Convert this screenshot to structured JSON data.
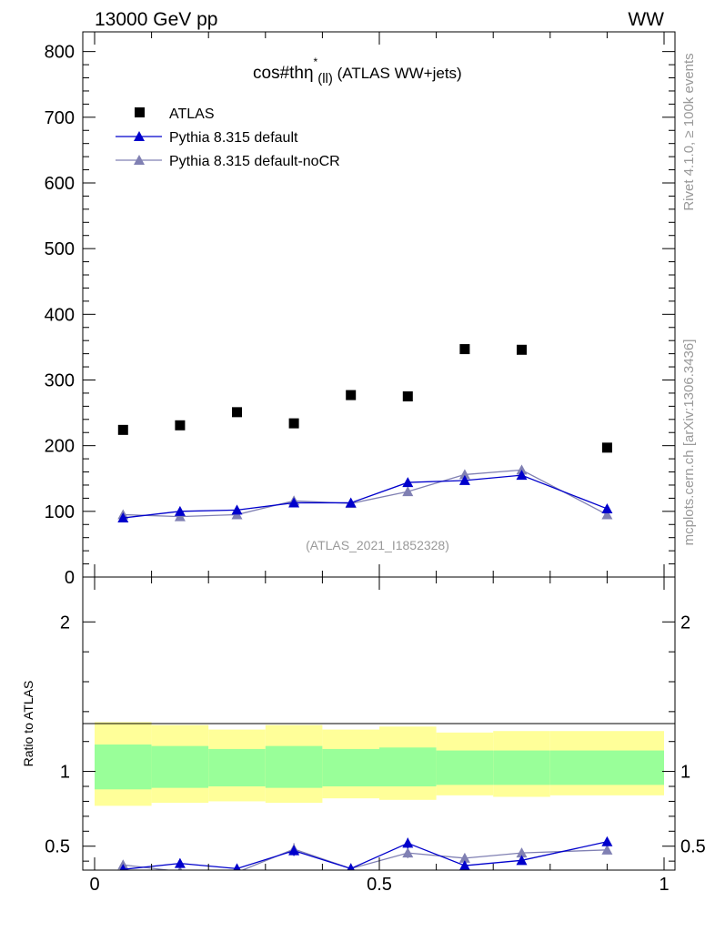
{
  "header": {
    "left": "13000 GeV pp",
    "right": "WW"
  },
  "side_labels": {
    "rivet": "Rivet 4.1.0, ≥ 100k events",
    "mcplots": "mcplots.cern.ch [arXiv:1306.3436]"
  },
  "colors": {
    "atlas": "#000000",
    "default": "#0000cc",
    "noCR": "#8080b3",
    "band_yellow": "#ffff99",
    "band_green": "#99ff99"
  },
  "chart_data": [
    {
      "type": "scatter",
      "title_main": "cos#thη",
      "title_sup": "*",
      "title_sub": "(ll)",
      "title_rest": " (ATLAS WW+jets)",
      "watermark": "(ATLAS_2021_I1852328)",
      "xlim": [
        0,
        1
      ],
      "ylim": [
        0,
        830
      ],
      "yticks": [
        "0",
        "100",
        "200",
        "300",
        "400",
        "500",
        "600",
        "700",
        "800"
      ],
      "legend_position": "top-left",
      "legend": [
        "ATLAS",
        "Pythia 8.315 default",
        "Pythia 8.315 default-noCR"
      ],
      "x": [
        0.05,
        0.15,
        0.25,
        0.35,
        0.45,
        0.55,
        0.65,
        0.75,
        0.9
      ],
      "xerr": [
        0.05,
        0.05,
        0.05,
        0.05,
        0.05,
        0.05,
        0.05,
        0.05,
        0.1
      ],
      "series": [
        {
          "name": "ATLAS",
          "marker": "square",
          "values": [
            224,
            231,
            251,
            234,
            277,
            275,
            347,
            346,
            197
          ]
        },
        {
          "name": "Pythia 8.315 default",
          "marker": "triangle",
          "values": [
            90,
            100,
            102,
            113,
            113,
            144,
            147,
            155,
            104
          ],
          "err": [
            3,
            4,
            4,
            5,
            5,
            6,
            5,
            5,
            4
          ]
        },
        {
          "name": "Pythia 8.315 default-noCR",
          "marker": "triangle",
          "values": [
            95,
            92,
            95,
            116,
            112,
            130,
            156,
            163,
            95
          ],
          "err": [
            3,
            4,
            4,
            5,
            5,
            5,
            6,
            6,
            4
          ]
        }
      ]
    },
    {
      "type": "line",
      "ylabel": "Ratio to ATLAS",
      "xlim": [
        0,
        1
      ],
      "ylim": [
        0.34,
        2.3
      ],
      "xticks": [
        "0",
        "0.5",
        "1"
      ],
      "yticks": [
        "0.5",
        "1",
        "2"
      ],
      "bands": {
        "x_edges": [
          0,
          0.1,
          0.2,
          0.3,
          0.4,
          0.5,
          0.6,
          0.7,
          0.8,
          1.0
        ],
        "yellow_low": [
          0.77,
          0.79,
          0.8,
          0.79,
          0.82,
          0.81,
          0.84,
          0.83,
          0.84
        ],
        "yellow_high": [
          1.33,
          1.31,
          1.28,
          1.31,
          1.28,
          1.3,
          1.26,
          1.27,
          1.27
        ],
        "green_low": [
          0.88,
          0.89,
          0.9,
          0.89,
          0.9,
          0.9,
          0.91,
          0.91,
          0.91
        ],
        "green_high": [
          1.18,
          1.17,
          1.15,
          1.17,
          1.15,
          1.16,
          1.14,
          1.14,
          1.14
        ]
      },
      "x": [
        0.05,
        0.15,
        0.25,
        0.35,
        0.45,
        0.55,
        0.65,
        0.75,
        0.9
      ],
      "series": [
        {
          "name": "Pythia 8.315 default",
          "values": [
            0.345,
            0.385,
            0.35,
            0.47,
            0.35,
            0.52,
            0.37,
            0.405,
            0.53
          ],
          "err": [
            0.02,
            0.03,
            0.03,
            0.035,
            0.03,
            0.035,
            0.03,
            0.025,
            0.025
          ]
        },
        {
          "name": "Pythia 8.315 default-noCR",
          "values": [
            0.375,
            0.33,
            0.325,
            0.48,
            0.35,
            0.455,
            0.42,
            0.455,
            0.475
          ],
          "err": [
            0.03,
            0.03,
            0.03,
            0.04,
            0.035,
            0.035,
            0.03,
            0.03,
            0.025
          ]
        }
      ]
    }
  ]
}
